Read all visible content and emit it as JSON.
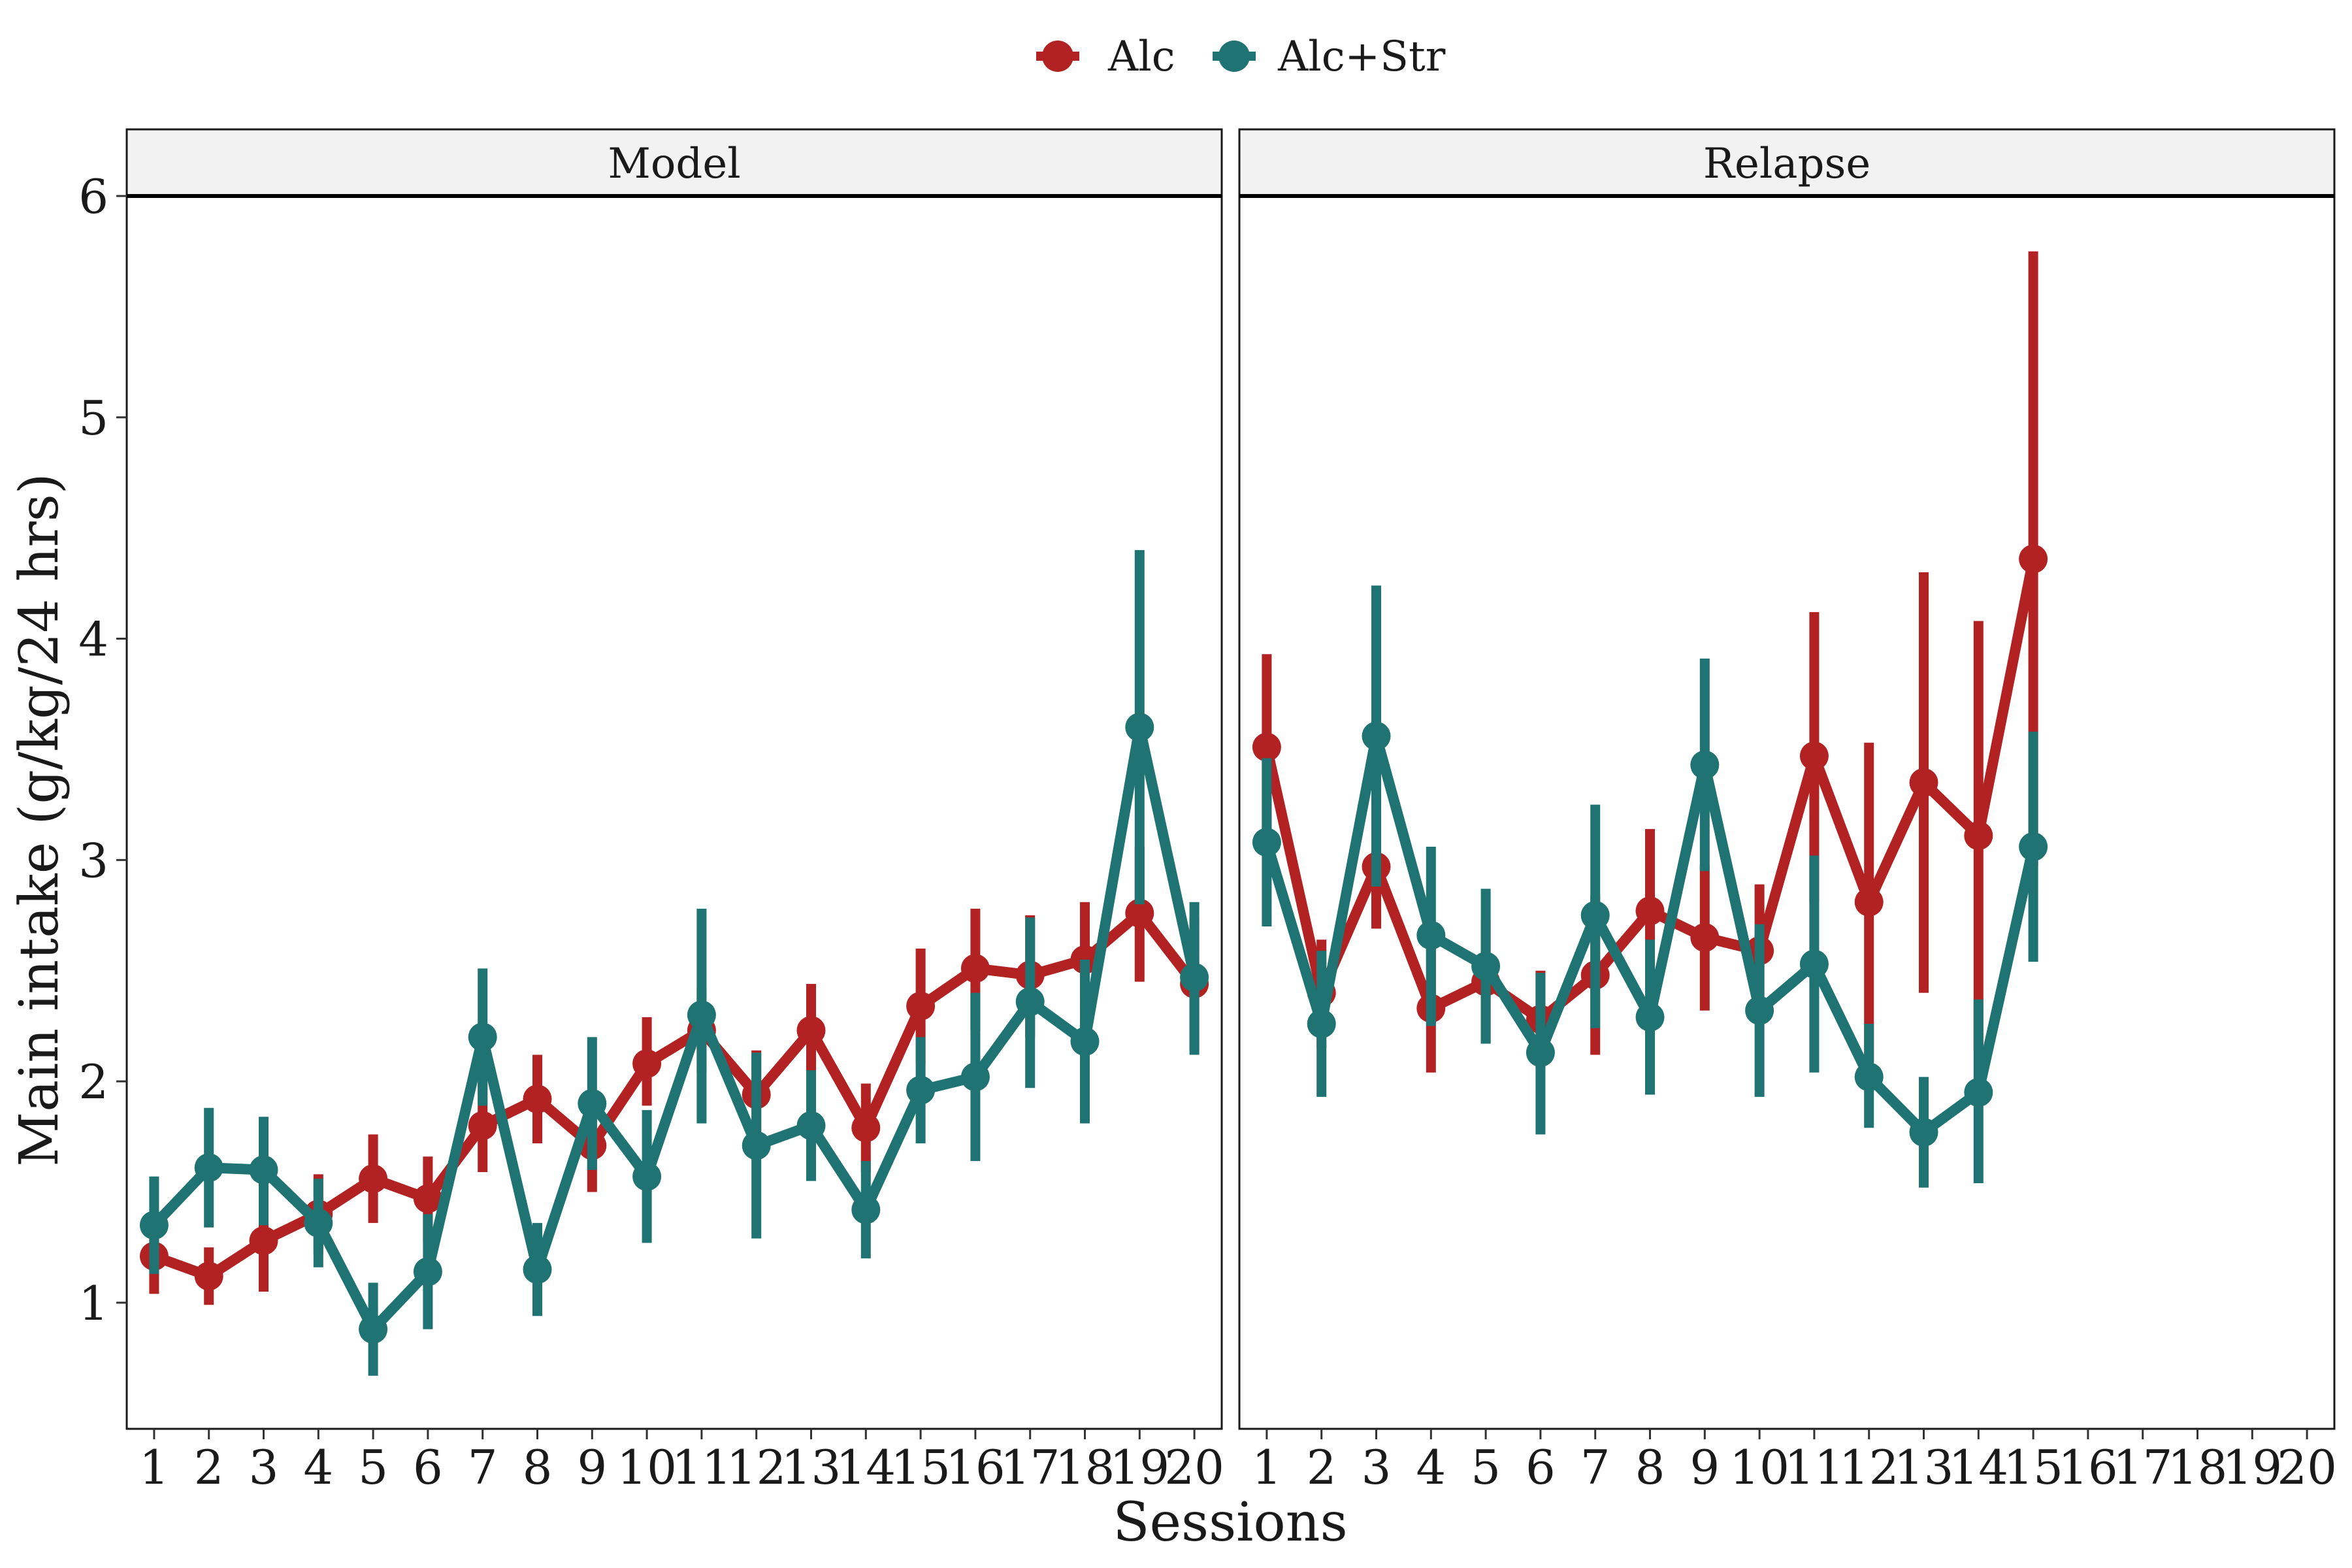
{
  "chart_data": {
    "type": "line",
    "xlabel": "Sessions",
    "ylabel": "Main intake (g/kg/24 hrs)",
    "ylim": [
      0.43,
      6.0
    ],
    "yticks": [
      1,
      2,
      3,
      4,
      5,
      6
    ],
    "xticks": [
      "1",
      "2",
      "3",
      "4",
      "5",
      "6",
      "7",
      "8",
      "9",
      "10",
      "11",
      "12",
      "13",
      "14",
      "15",
      "16",
      "17",
      "18",
      "19",
      "20"
    ],
    "legend": {
      "position": "top",
      "entries": [
        {
          "name": "Alc",
          "color": "#B22222"
        },
        {
          "name": "Alc+Str",
          "color": "#207373"
        }
      ]
    },
    "panels": [
      {
        "title": "Model",
        "series": [
          {
            "name": "Alc",
            "color": "#B22222",
            "x": [
              1,
              2,
              3,
              4,
              5,
              6,
              7,
              8,
              9,
              10,
              11,
              12,
              13,
              14,
              15,
              16,
              17,
              18,
              19,
              20
            ],
            "y": [
              1.21,
              1.12,
              1.28,
              1.4,
              1.56,
              1.47,
              1.8,
              1.92,
              1.71,
              2.08,
              2.23,
              1.94,
              2.23,
              1.79,
              2.34,
              2.51,
              2.48,
              2.55,
              2.76,
              2.44
            ],
            "ylow": [
              1.04,
              0.99,
              1.05,
              1.22,
              1.36,
              1.28,
              1.59,
              1.72,
              1.5,
              1.89,
              2.04,
              1.74,
              2.02,
              1.59,
              2.08,
              2.23,
              2.2,
              2.28,
              2.45,
              2.14
            ],
            "yhigh": [
              1.38,
              1.25,
              1.5,
              1.58,
              1.76,
              1.66,
              2.01,
              2.12,
              1.92,
              2.29,
              2.42,
              2.14,
              2.44,
              1.99,
              2.6,
              2.78,
              2.75,
              2.81,
              3.06,
              2.74
            ]
          },
          {
            "name": "Alc+Str",
            "color": "#207373",
            "x": [
              1,
              2,
              3,
              4,
              5,
              6,
              7,
              8,
              9,
              10,
              11,
              12,
              13,
              14,
              15,
              16,
              17,
              18,
              19,
              20
            ],
            "y": [
              1.35,
              1.61,
              1.6,
              1.36,
              0.88,
              1.14,
              2.2,
              1.15,
              1.9,
              1.57,
              2.3,
              1.71,
              1.8,
              1.42,
              1.96,
              2.02,
              2.36,
              2.18,
              3.6,
              2.47
            ],
            "ylow": [
              1.13,
              1.34,
              1.35,
              1.16,
              0.67,
              0.88,
              1.89,
              0.94,
              1.6,
              1.27,
              1.81,
              1.29,
              1.55,
              1.2,
              1.72,
              1.64,
              1.97,
              1.81,
              2.8,
              2.12
            ],
            "yhigh": [
              1.57,
              1.88,
              1.84,
              1.56,
              1.09,
              1.4,
              2.51,
              1.36,
              2.2,
              1.87,
              2.78,
              2.13,
              2.05,
              1.64,
              2.2,
              2.4,
              2.74,
              2.55,
              4.4,
              2.81
            ]
          }
        ]
      },
      {
        "title": "Relapse",
        "series": [
          {
            "name": "Alc",
            "color": "#B22222",
            "x": [
              1,
              2,
              3,
              4,
              5,
              6,
              7,
              8,
              9,
              10,
              11,
              12,
              13,
              14,
              15
            ],
            "y": [
              3.51,
              2.4,
              2.97,
              2.33,
              2.45,
              2.28,
              2.48,
              2.77,
              2.65,
              2.59,
              3.47,
              2.81,
              3.35,
              3.11,
              4.36
            ],
            "ylow": [
              3.09,
              2.15,
              2.69,
              2.04,
              2.17,
              2.06,
              2.12,
              2.4,
              2.32,
              2.29,
              2.81,
              2.09,
              2.4,
              2.14,
              2.97
            ],
            "yhigh": [
              3.93,
              2.64,
              3.25,
              2.62,
              2.73,
              2.5,
              2.84,
              3.14,
              2.98,
              2.89,
              4.12,
              3.53,
              4.3,
              4.08,
              5.75
            ]
          },
          {
            "name": "Alc+Str",
            "color": "#207373",
            "x": [
              1,
              2,
              3,
              4,
              5,
              6,
              7,
              8,
              9,
              10,
              11,
              12,
              13,
              14,
              15
            ],
            "y": [
              3.08,
              2.26,
              3.56,
              2.66,
              2.52,
              2.13,
              2.75,
              2.29,
              3.43,
              2.32,
              2.53,
              2.02,
              1.77,
              1.95,
              3.06
            ],
            "ylow": [
              2.7,
              1.93,
              2.88,
              2.25,
              2.17,
              1.76,
              2.24,
              1.94,
              2.95,
              1.93,
              2.04,
              1.79,
              1.52,
              1.54,
              2.54
            ],
            "yhigh": [
              3.46,
              2.59,
              4.24,
              3.06,
              2.87,
              2.49,
              3.25,
              2.64,
              3.91,
              2.71,
              3.02,
              2.26,
              2.02,
              2.37,
              3.58
            ]
          }
        ]
      }
    ]
  }
}
